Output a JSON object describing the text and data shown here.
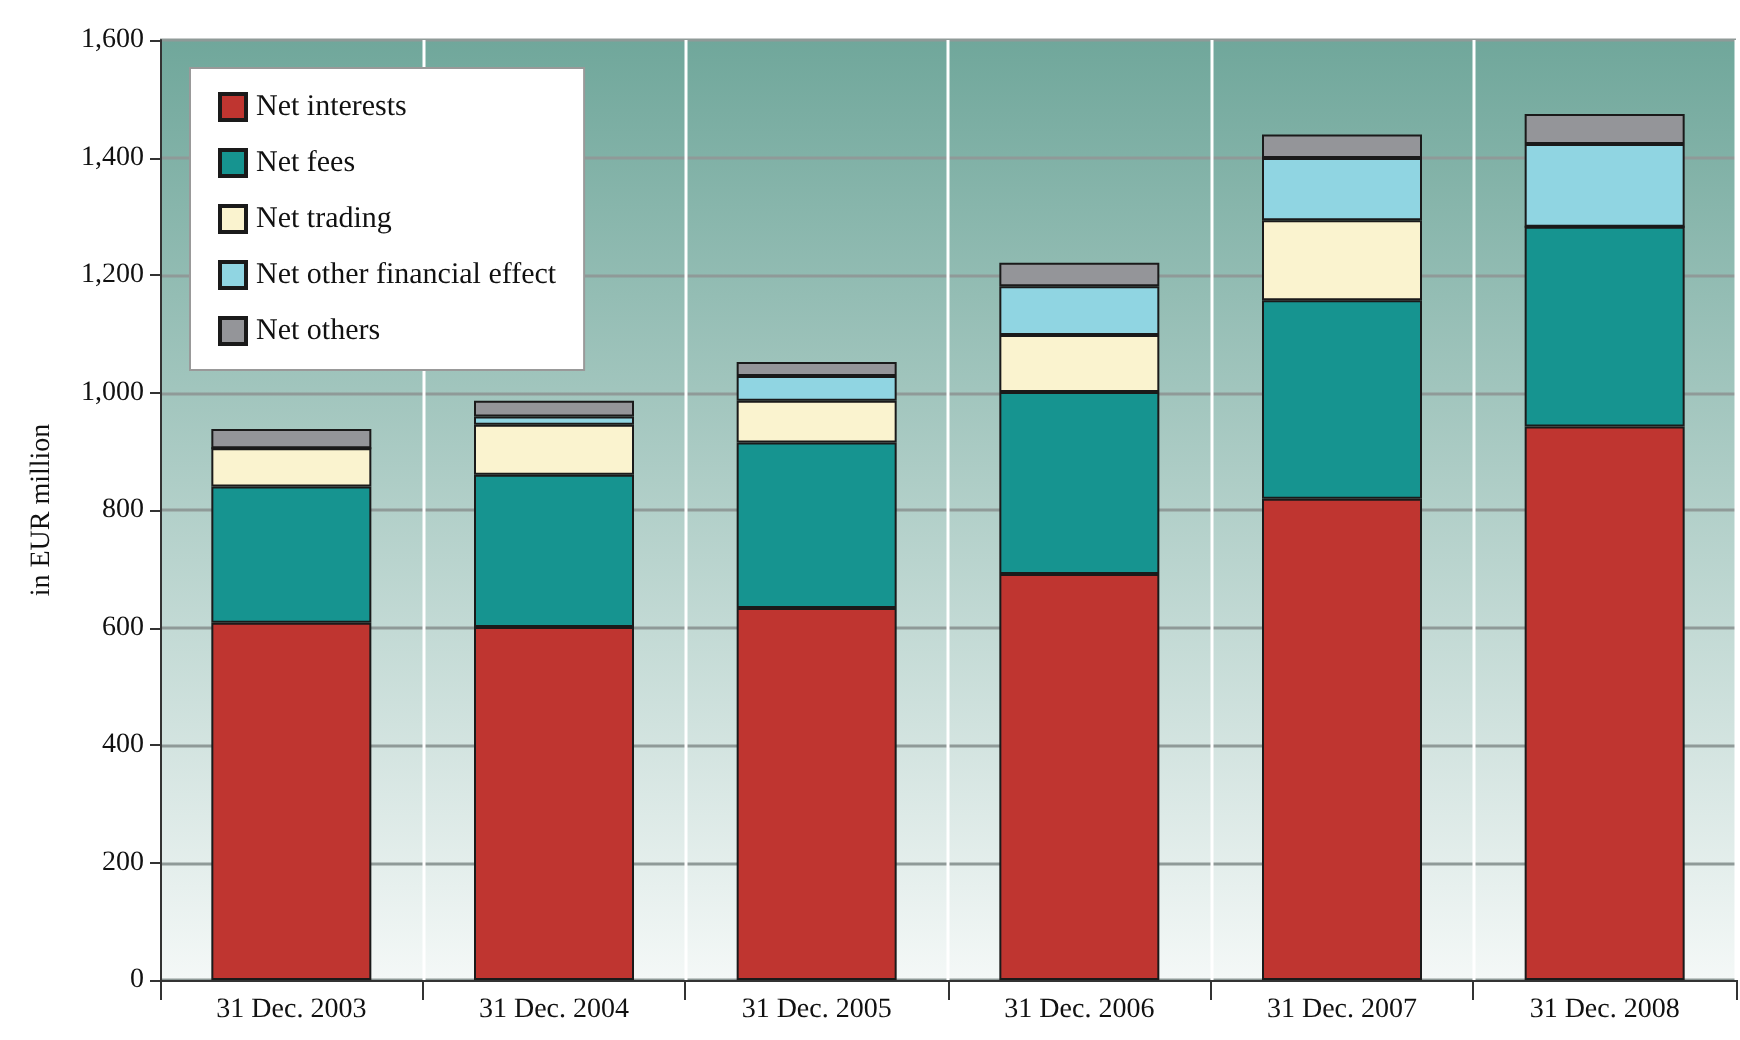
{
  "chart_data": {
    "type": "bar",
    "stacked": true,
    "ylabel": "in EUR million",
    "categories": [
      "31 Dec. 2003",
      "31 Dec. 2004",
      "31 Dec. 2005",
      "31 Dec. 2006",
      "31 Dec. 2007",
      "31 Dec. 2008"
    ],
    "series": [
      {
        "name": "Net interests",
        "color": "#bf3530",
        "values": [
          608,
          601,
          633,
          691,
          819,
          942
        ]
      },
      {
        "name": "Net fees",
        "color": "#169490",
        "values": [
          232,
          259,
          282,
          310,
          338,
          340
        ]
      },
      {
        "name": "Net trading",
        "color": "#faf3cf",
        "values": [
          65,
          85,
          71,
          97,
          136,
          0
        ]
      },
      {
        "name": "Net other financial effect",
        "color": "#90d5e2",
        "values": [
          0,
          14,
          42,
          83,
          106,
          141
        ]
      },
      {
        "name": "Net others",
        "color": "#949599",
        "values": [
          33,
          27,
          24,
          40,
          40,
          51
        ]
      }
    ],
    "ylim": [
      0,
      1600
    ],
    "yticks": [
      0,
      200,
      400,
      600,
      800,
      {
        "value": 1000,
        "label": "1,000"
      },
      {
        "value": 1200,
        "label": "1,200"
      },
      {
        "value": 1400,
        "label": "1,400"
      },
      {
        "value": 1600,
        "label": "1,600"
      }
    ],
    "grid": true,
    "legend": "top left"
  }
}
